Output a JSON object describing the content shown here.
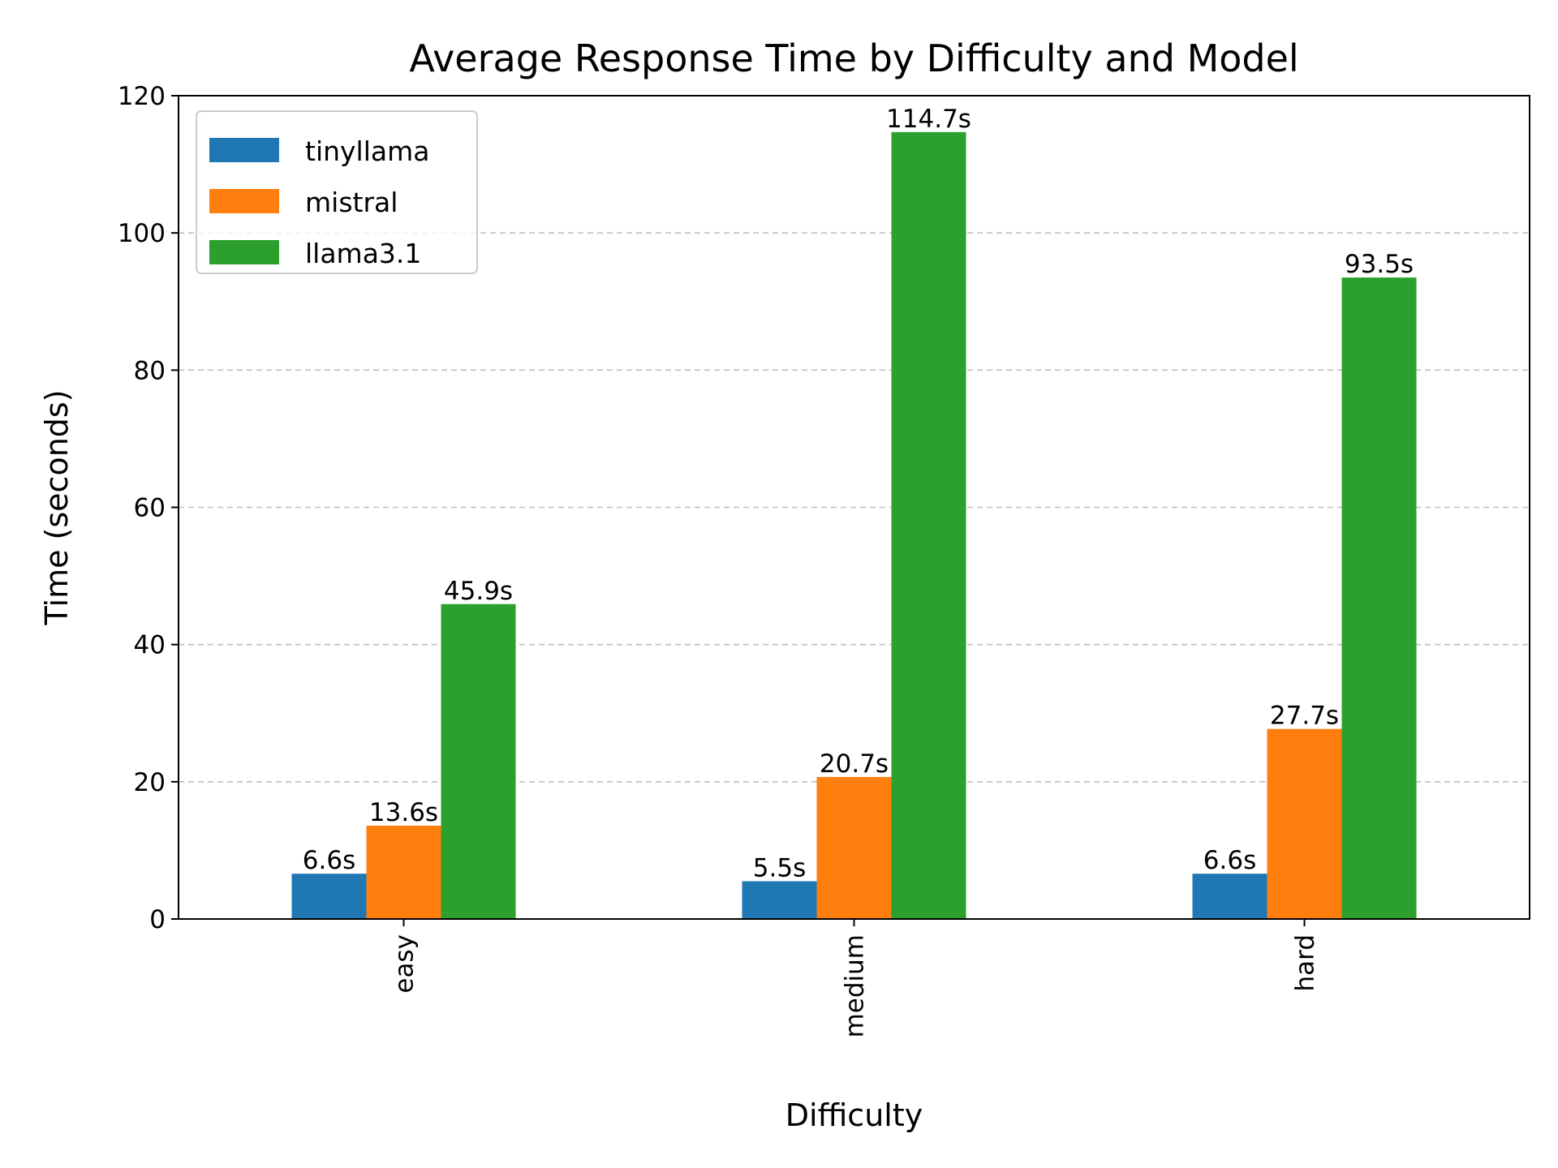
{
  "chart_data": {
    "type": "bar",
    "title": "Average Response Time by Difficulty and Model",
    "xlabel": "Difficulty",
    "ylabel": "Time (seconds)",
    "categories": [
      "easy",
      "medium",
      "hard"
    ],
    "series": [
      {
        "name": "tinyllama",
        "color": "#1f77b4",
        "values": [
          6.6,
          5.5,
          6.6
        ],
        "labels": [
          "6.6s",
          "5.5s",
          "6.6s"
        ]
      },
      {
        "name": "mistral",
        "color": "#ff7f0e",
        "values": [
          13.6,
          20.7,
          27.7
        ],
        "labels": [
          "13.6s",
          "20.7s",
          "27.7s"
        ]
      },
      {
        "name": "llama3.1",
        "color": "#2ca02c",
        "values": [
          45.9,
          114.7,
          93.5
        ],
        "labels": [
          "45.9s",
          "114.7s",
          "93.5s"
        ]
      }
    ],
    "ylim": [
      0,
      120
    ],
    "yticks": [
      0,
      20,
      40,
      60,
      80,
      100,
      120
    ],
    "grid": "y-dashed",
    "legend_position": "top-left",
    "x_tick_rotation": "vertical"
  }
}
